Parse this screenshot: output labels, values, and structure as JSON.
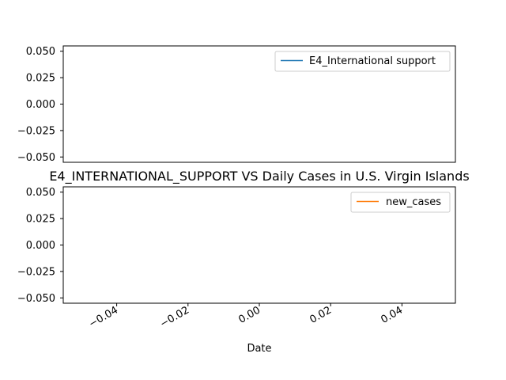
{
  "chart_data": [
    {
      "type": "line",
      "title": "",
      "xlabel": "",
      "ylabel": "",
      "series": [
        {
          "name": "E4_International support",
          "x": [],
          "values": [],
          "color": "#1f77b4"
        }
      ],
      "ylim": [
        -0.055,
        0.055
      ],
      "yticks": [
        "0.050",
        "0.025",
        "0.000",
        "−0.025",
        "−0.050"
      ],
      "legend": "upper right",
      "grid": false
    },
    {
      "type": "line",
      "title": "E4_INTERNATIONAL_SUPPORT VS Daily Cases in U.S. Virgin Islands",
      "xlabel": "Date",
      "ylabel": "",
      "series": [
        {
          "name": "new_cases",
          "x": [],
          "values": [],
          "color": "#ff7f0e"
        }
      ],
      "xlim": [
        -0.055,
        0.055
      ],
      "ylim": [
        -0.055,
        0.055
      ],
      "xticks": [
        "−0.04",
        "−0.02",
        "0.00",
        "0.02",
        "0.04"
      ],
      "yticks": [
        "0.050",
        "0.025",
        "0.000",
        "−0.025",
        "−0.050"
      ],
      "legend": "upper right",
      "grid": false
    }
  ]
}
